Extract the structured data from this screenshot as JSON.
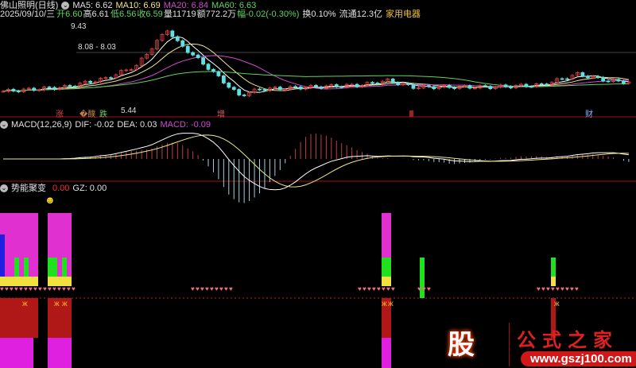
{
  "header": {
    "stock": "佛山照明(日线)",
    "ma5": "MA5: 6.62",
    "ma10": "MA10: 6.69",
    "ma20": "MA20: 6.84",
    "ma60": "MA60: 6.63",
    "date": "2025/09/10/三",
    "open": "开6.60",
    "high": "高6.61",
    "low": "低6.56",
    "close": "收6.59",
    "volume": "量11719",
    "amount": "额772.2万",
    "change": "幅-0.02(-0.30%)",
    "turnover": "换0.10%",
    "float": "流通12.3亿",
    "sector": "家用电器"
  },
  "price_chart": {
    "high_label": "9.43",
    "range_label": "8.08 - 8.03",
    "low_label": "5.44",
    "markers": [
      "涨",
      "�醭",
      "跌",
      "增",
      "财"
    ]
  },
  "macd": {
    "title": "MACD(12,26,9)",
    "dif": "DIF: -0.02",
    "dea": "DEA: 0.03",
    "macd": "MACD: -0.09"
  },
  "indicator": {
    "title": "势能聚变",
    "value": "0.00",
    "gz": "GZ: 0.00",
    "smiley": "☻"
  },
  "watermark": {
    "logo": "股",
    "name": "公式之家",
    "url": "www.gszj100.com"
  },
  "colors": {
    "up": "#e04040",
    "down": "#60e0e0",
    "ma5": "#ffffff",
    "ma10": "#f0e68c",
    "ma20": "#d04ad0",
    "ma60": "#5fd35f"
  }
}
